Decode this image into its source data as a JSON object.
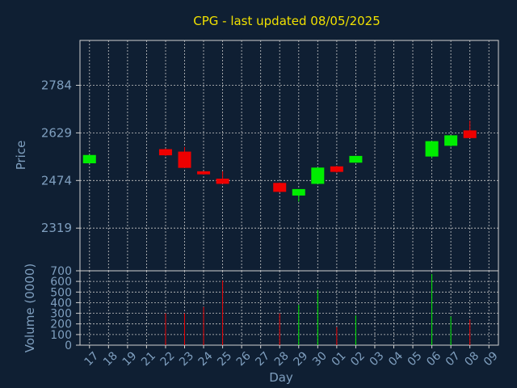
{
  "title": "CPG - last updated 08/05/2025",
  "colors": {
    "background": "#0f1f33",
    "axis": "#d0d0d0",
    "grid": "#c8c8c8",
    "text": "#7f9fbf",
    "title": "#f0e000",
    "up": "#00ee00",
    "down": "#ee0000"
  },
  "chart_data": [
    {
      "type": "candlestick",
      "title": "CPG - last updated 08/05/2025",
      "xlabel": "",
      "ylabel": "Price",
      "ylim": [
        2180,
        2930
      ],
      "yticks": [
        "2319",
        "2474",
        "2629",
        "2784"
      ],
      "grid": true,
      "x": [
        "17",
        "18",
        "19",
        "21",
        "22",
        "23",
        "24",
        "25",
        "26",
        "27",
        "28",
        "29",
        "30",
        "01",
        "02",
        "03",
        "04",
        "05",
        "06",
        "07",
        "08",
        "09"
      ],
      "candles": [
        {
          "x": "17",
          "open": 2530,
          "close": 2557,
          "high": 2557,
          "low": 2530
        },
        {
          "x": "22",
          "open": 2576,
          "close": 2556,
          "high": 2578,
          "low": 2554
        },
        {
          "x": "23",
          "open": 2568,
          "close": 2515,
          "high": 2583,
          "low": 2515
        },
        {
          "x": "24",
          "open": 2504,
          "close": 2494,
          "high": 2504,
          "low": 2493
        },
        {
          "x": "25",
          "open": 2480,
          "close": 2463,
          "high": 2504,
          "low": 2463
        },
        {
          "x": "28",
          "open": 2466,
          "close": 2437,
          "high": 2467,
          "low": 2435
        },
        {
          "x": "29",
          "open": 2425,
          "close": 2446,
          "high": 2446,
          "low": 2405
        },
        {
          "x": "30",
          "open": 2463,
          "close": 2516,
          "high": 2516,
          "low": 2463
        },
        {
          "x": "01",
          "open": 2520,
          "close": 2502,
          "high": 2522,
          "low": 2499
        },
        {
          "x": "02",
          "open": 2532,
          "close": 2554,
          "high": 2554,
          "low": 2532
        },
        {
          "x": "06",
          "open": 2552,
          "close": 2602,
          "high": 2602,
          "low": 2547
        },
        {
          "x": "07",
          "open": 2587,
          "close": 2621,
          "high": 2621,
          "low": 2584
        },
        {
          "x": "08",
          "open": 2637,
          "close": 2612,
          "high": 2669,
          "low": 2612
        }
      ]
    },
    {
      "type": "bar",
      "xlabel": "Day",
      "ylabel": "Volume (0000)",
      "ylim": [
        0,
        700
      ],
      "yticks": [
        "0",
        "100",
        "200",
        "300",
        "400",
        "500",
        "600",
        "700"
      ],
      "grid": true,
      "categories": [
        "22",
        "23",
        "24",
        "25",
        "28",
        "29",
        "30",
        "01",
        "02",
        "06",
        "07",
        "08"
      ],
      "values": [
        300,
        300,
        360,
        610,
        300,
        380,
        520,
        170,
        280,
        670,
        270,
        240
      ],
      "directions": [
        "down",
        "down",
        "down",
        "down",
        "down",
        "up",
        "up",
        "down",
        "up",
        "up",
        "up",
        "down"
      ]
    }
  ]
}
